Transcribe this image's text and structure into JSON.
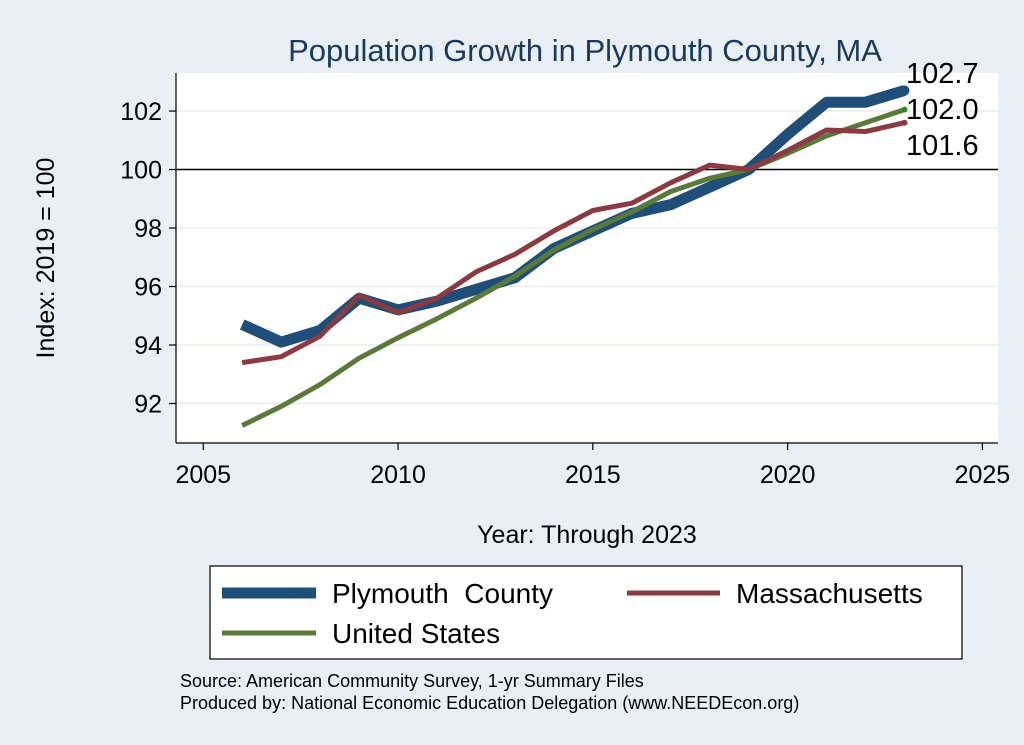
{
  "chart_data": {
    "type": "line",
    "title": "Population Growth in Plymouth County, MA",
    "xlabel": "Year: Through 2023",
    "ylabel": "Index: 2019 = 100",
    "xlim": [
      2004.3,
      2025.4
    ],
    "ylim": [
      90.65,
      103.3
    ],
    "xticks": [
      2005,
      2010,
      2015,
      2020,
      2025
    ],
    "yticks": [
      92,
      94,
      96,
      98,
      100,
      102
    ],
    "reference_line": 100,
    "grid": true,
    "legend_placement": "bottom",
    "x": [
      2006,
      2007,
      2008,
      2009,
      2010,
      2011,
      2012,
      2013,
      2014,
      2015,
      2016,
      2017,
      2018,
      2019,
      2020,
      2021,
      2022,
      2023
    ],
    "series": [
      {
        "name": "Plymouth  County",
        "color": "#1f4e79",
        "values": [
          94.7,
          94.1,
          94.5,
          95.6,
          95.2,
          95.5,
          95.9,
          96.3,
          97.3,
          97.9,
          98.5,
          98.8,
          99.4,
          100.0,
          101.2,
          102.3,
          102.3,
          102.7
        ],
        "end_label": "102.7"
      },
      {
        "name": "Massachusetts",
        "color": "#8c3a42",
        "values": [
          93.4,
          93.6,
          94.3,
          95.7,
          95.1,
          95.6,
          96.5,
          97.1,
          97.9,
          98.6,
          98.85,
          99.55,
          100.15,
          100.0,
          100.65,
          101.35,
          101.3,
          101.6
        ],
        "end_label": "101.6"
      },
      {
        "name": "United States",
        "color": "#5a7a3a",
        "values": [
          91.25,
          91.9,
          92.65,
          93.55,
          94.25,
          94.9,
          95.6,
          96.35,
          97.25,
          97.95,
          98.55,
          99.25,
          99.7,
          100.0,
          100.55,
          101.15,
          101.6,
          102.05
        ],
        "end_label": "102.0"
      }
    ],
    "source_lines": [
      "Source: American Community Survey, 1-yr Summary Files",
      "Produced by: National Economic Education Delegation (www.NEEDEcon.org)"
    ]
  }
}
